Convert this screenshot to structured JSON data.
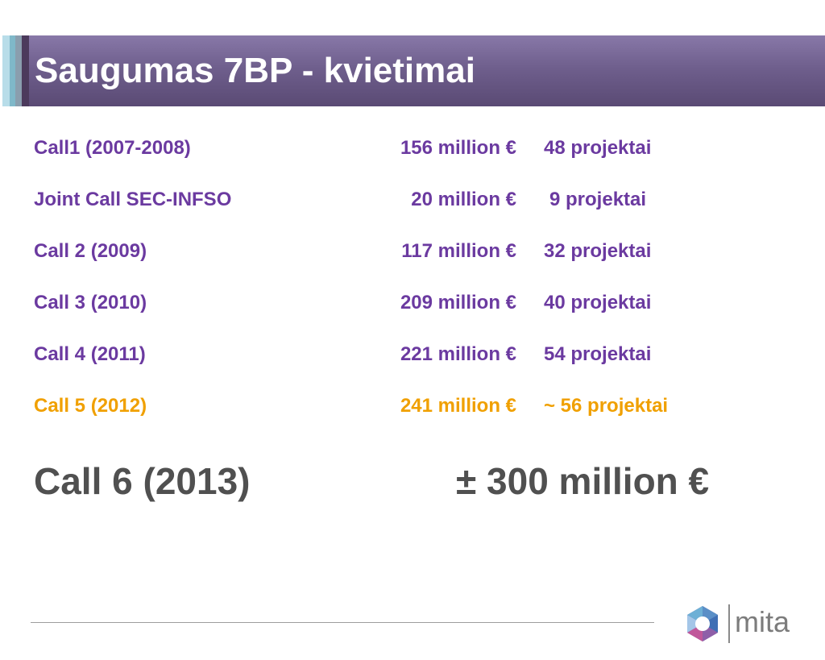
{
  "title": "Saugumas 7BP - kvietimai",
  "rows": [
    {
      "name": "Call1 (2007-2008)",
      "amount": "156 million €",
      "projects": "48 projektai"
    },
    {
      "name": "Joint Call SEC-INFSO",
      "amount": "20 million €",
      "projects": "9 projektai"
    },
    {
      "name": "Call 2 (2009)",
      "amount": "117 million €",
      "projects": "32 projektai"
    },
    {
      "name": "Call 3 (2010)",
      "amount": "209 million €",
      "projects": "40 projektai"
    },
    {
      "name": "Call 4 (2011)",
      "amount": "221 million €",
      "projects": "54 projektai"
    },
    {
      "name": "Call 5 (2012)",
      "amount": "241 million €",
      "projects": "~ 56 projektai"
    }
  ],
  "highlight": {
    "name": "Call 6 (2013)",
    "amount": "± 300 million €"
  },
  "logo": {
    "text": "mita"
  },
  "colors": {
    "row_text": "#6b3aa0",
    "current_call": "#f0a000",
    "highlight_text": "#505050",
    "header_band": "#6f5f8d"
  }
}
